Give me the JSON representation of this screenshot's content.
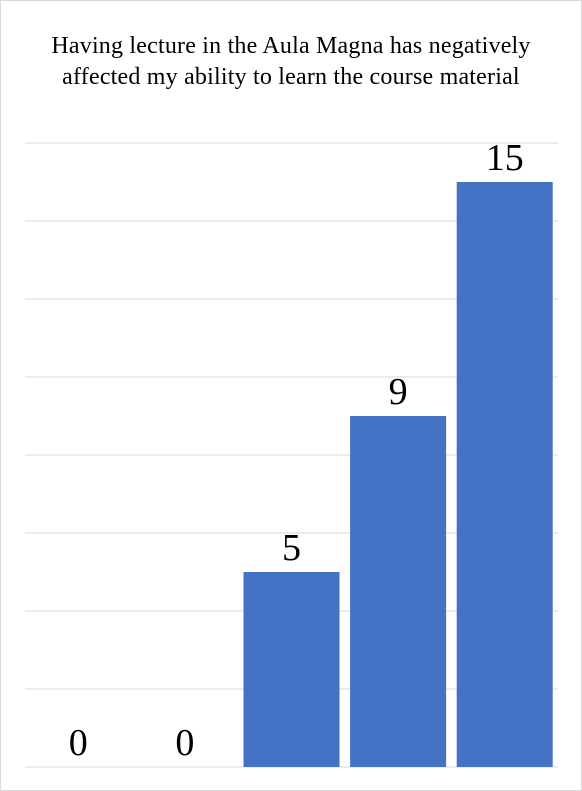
{
  "chart_data": {
    "type": "bar",
    "title": "Having lecture in the Aula Magna has negatively affected my ability to learn the course material",
    "categories": [
      "",
      "",
      "",
      "",
      ""
    ],
    "values": [
      0,
      0,
      5,
      9,
      15
    ],
    "data_labels": [
      "0",
      "0",
      "5",
      "9",
      "15"
    ],
    "xlabel": "",
    "ylabel": "",
    "ylim": [
      0,
      16
    ],
    "grid": true,
    "legend": "none",
    "bar_color": "#4472c4",
    "gridline_color": "#d9d9d9"
  }
}
